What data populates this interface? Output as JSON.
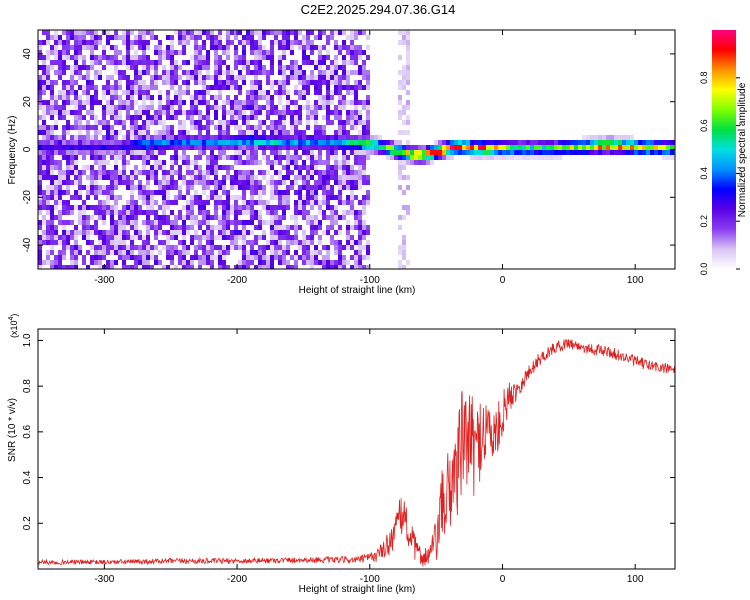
{
  "title": "C2E2.2025.294.07.36.G14",
  "chart_data": [
    {
      "type": "heatmap",
      "name": "spectrogram",
      "xlabel": "Height of straight line (km)",
      "ylabel": "Frequency (Hz)",
      "xlim": [
        -350,
        130
      ],
      "ylim": [
        -50,
        50
      ],
      "xticks": [
        -300,
        -200,
        -100,
        0,
        100
      ],
      "yticks": [
        -40,
        -20,
        0,
        20,
        40
      ],
      "colorbar": {
        "label": "Normalized spectral amplitude",
        "range": [
          0,
          1
        ],
        "ticks": [
          "0.0",
          "0.2",
          "0.4",
          "0.6",
          "0.8"
        ],
        "colors": [
          "#ffffff",
          "#d8c4f4",
          "#8a3cf0",
          "#5a00e6",
          "#0000ff",
          "#0090ff",
          "#00e0e0",
          "#00e040",
          "#80ff00",
          "#ffff00",
          "#ff9000",
          "#ff0000",
          "#ff0080"
        ]
      },
      "ridge": {
        "x": [
          -290,
          -270,
          -240,
          -210,
          -190,
          -170,
          -150,
          -130,
          -110,
          -100,
          -90,
          -80,
          -70,
          -60,
          -50,
          -40,
          -30,
          -20,
          -10,
          0,
          20,
          40,
          60,
          80,
          100,
          130
        ],
        "freq": [
          1,
          2,
          3,
          3,
          3.5,
          3,
          3,
          3,
          2.5,
          2,
          1,
          -0.5,
          -2,
          -2.5,
          -1,
          0.5,
          1,
          0.5,
          0.5,
          0.5,
          0.5,
          0.5,
          1,
          1.5,
          1,
          0.5
        ],
        "amplitude": [
          0.3,
          0.45,
          0.4,
          0.45,
          0.5,
          0.5,
          0.45,
          0.5,
          0.6,
          0.65,
          0.7,
          0.75,
          0.8,
          0.9,
          0.95,
          1.0,
          0.95,
          0.9,
          0.95,
          0.7,
          0.6,
          0.65,
          0.75,
          0.9,
          0.85,
          0.7
        ]
      },
      "noise_cutoff_x": -100
    },
    {
      "type": "line",
      "name": "snr",
      "xlabel": "Height of straight line (km)",
      "ylabel": "SNR (10 * v/v)",
      "scale_label": "(x10",
      "scale_exponent": "4",
      "scale_suffix": ")",
      "xlim": [
        -350,
        130
      ],
      "ylim": [
        0,
        1.05
      ],
      "xticks": [
        -300,
        -200,
        -100,
        0,
        100
      ],
      "yticks": [
        0.2,
        0.4,
        0.6,
        0.8,
        1.0
      ],
      "series": [
        {
          "name": "SNR",
          "color": "#e02020",
          "x": [
            -350,
            -300,
            -250,
            -200,
            -150,
            -110,
            -100,
            -95,
            -90,
            -85,
            -80,
            -75,
            -70,
            -65,
            -60,
            -55,
            -50,
            -45,
            -40,
            -35,
            -30,
            -25,
            -20,
            -15,
            -10,
            -5,
            0,
            5,
            10,
            15,
            20,
            25,
            30,
            40,
            50,
            60,
            70,
            80,
            90,
            100,
            110,
            120,
            130
          ],
          "y": [
            0.03,
            0.03,
            0.035,
            0.035,
            0.04,
            0.04,
            0.05,
            0.06,
            0.08,
            0.12,
            0.18,
            0.25,
            0.15,
            0.08,
            0.05,
            0.06,
            0.12,
            0.28,
            0.35,
            0.45,
            0.55,
            0.58,
            0.5,
            0.62,
            0.6,
            0.58,
            0.68,
            0.75,
            0.78,
            0.82,
            0.86,
            0.9,
            0.93,
            0.97,
            0.99,
            0.97,
            0.96,
            0.95,
            0.93,
            0.91,
            0.89,
            0.88,
            0.87
          ],
          "noise_amplitude": [
            0.01,
            0.01,
            0.012,
            0.012,
            0.012,
            0.015,
            0.02,
            0.03,
            0.04,
            0.06,
            0.08,
            0.1,
            0.08,
            0.05,
            0.04,
            0.06,
            0.1,
            0.18,
            0.2,
            0.25,
            0.25,
            0.22,
            0.2,
            0.18,
            0.15,
            0.12,
            0.1,
            0.07,
            0.05,
            0.04,
            0.035,
            0.03,
            0.03,
            0.025,
            0.025,
            0.025,
            0.025,
            0.025,
            0.025,
            0.025,
            0.025,
            0.025,
            0.025
          ]
        }
      ]
    }
  ]
}
